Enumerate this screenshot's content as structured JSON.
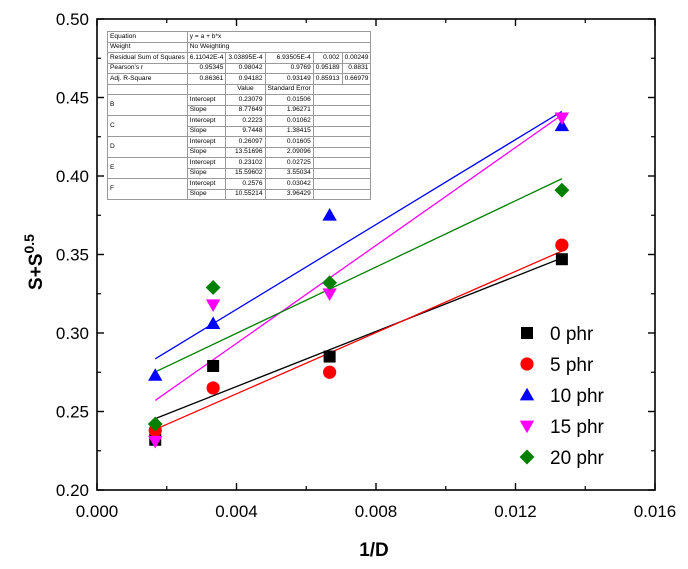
{
  "chart_data": {
    "type": "scatter",
    "xlabel": "1/D",
    "ylabel": "S+S",
    "ylabel_sup": "0.5",
    "xlim": [
      0.0,
      0.016
    ],
    "ylim": [
      0.2,
      0.5
    ],
    "x_ticks": [
      0.0,
      0.004,
      0.008,
      0.012,
      0.016
    ],
    "x_tick_labels": [
      "0.000",
      "0.004",
      "0.008",
      "0.012",
      "0.016"
    ],
    "y_ticks": [
      0.2,
      0.25,
      0.3,
      0.35,
      0.4,
      0.45,
      0.5
    ],
    "y_tick_labels": [
      "0.20",
      "0.25",
      "0.30",
      "0.35",
      "0.40",
      "0.45",
      "0.50"
    ],
    "legend_position": "bottom-right",
    "series": [
      {
        "name": "0 phr",
        "marker": "square",
        "color": "#000000",
        "x": [
          0.00167,
          0.00333,
          0.00667,
          0.01333
        ],
        "y": [
          0.232,
          0.279,
          0.285,
          0.347
        ],
        "fit": {
          "intercept": 0.23079,
          "slope": 8.77649
        }
      },
      {
        "name": "5 phr",
        "marker": "circle",
        "color": "#ff0000",
        "x": [
          0.00167,
          0.00333,
          0.00667,
          0.01333
        ],
        "y": [
          0.238,
          0.265,
          0.275,
          0.356
        ],
        "fit": {
          "intercept": 0.2223,
          "slope": 9.7448
        }
      },
      {
        "name": "10 phr",
        "marker": "triangle-up",
        "color": "#0000ff",
        "x": [
          0.00167,
          0.00333,
          0.00667,
          0.01333
        ],
        "y": [
          0.273,
          0.306,
          0.375,
          0.432
        ],
        "fit": {
          "intercept": 0.26097,
          "slope": 13.51696
        }
      },
      {
        "name": "15 phr",
        "marker": "triangle-down",
        "color": "#ff00ff",
        "x": [
          0.00167,
          0.00333,
          0.00667,
          0.01333
        ],
        "y": [
          0.231,
          0.318,
          0.325,
          0.437
        ],
        "fit": {
          "intercept": 0.23102,
          "slope": 15.59602
        }
      },
      {
        "name": "20 phr",
        "marker": "diamond",
        "color": "#008000",
        "x": [
          0.00167,
          0.00333,
          0.00667,
          0.01333
        ],
        "y": [
          0.242,
          0.329,
          0.332,
          0.391
        ],
        "fit": {
          "intercept": 0.2576,
          "slope": 10.55214
        }
      }
    ],
    "fit_table": {
      "rows": [
        [
          "Equation",
          "y = a + b*x",
          "",
          "",
          "",
          ""
        ],
        [
          "Weight",
          "No Weighting",
          "",
          "",
          "",
          ""
        ],
        [
          "Residual Sum of Squares",
          "6.11042E-4",
          "3.03895E-4",
          "6.93505E-4",
          "0.002",
          "0.00249"
        ],
        [
          "Pearson's r",
          "0.95345",
          "0.98042",
          "0.9769",
          "0.95189",
          "0.8831"
        ],
        [
          "Adj. R-Square",
          "0.86361",
          "0.94182",
          "0.93149",
          "0.85913",
          "0.66979"
        ]
      ],
      "param_header": [
        "",
        "",
        "Value",
        "Standard Error"
      ],
      "params": [
        {
          "group": "B",
          "rows": [
            [
              "Intercept",
              "0.23079",
              "0.01506"
            ],
            [
              "Slope",
              "8.77649",
              "1.96271"
            ]
          ]
        },
        {
          "group": "C",
          "rows": [
            [
              "Intercept",
              "0.2223",
              "0.01062"
            ],
            [
              "Slope",
              "9.7448",
              "1.38415"
            ]
          ]
        },
        {
          "group": "D",
          "rows": [
            [
              "Intercept",
              "0.26097",
              "0.01605"
            ],
            [
              "Slope",
              "13.51696",
              "2.09096"
            ]
          ]
        },
        {
          "group": "E",
          "rows": [
            [
              "Intercept",
              "0.23102",
              "0.02725"
            ],
            [
              "Slope",
              "15.59602",
              "3.55034"
            ]
          ]
        },
        {
          "group": "F",
          "rows": [
            [
              "Intercept",
              "0.2576",
              "0.03042"
            ],
            [
              "Slope",
              "10.55214",
              "3.96429"
            ]
          ]
        }
      ]
    }
  }
}
